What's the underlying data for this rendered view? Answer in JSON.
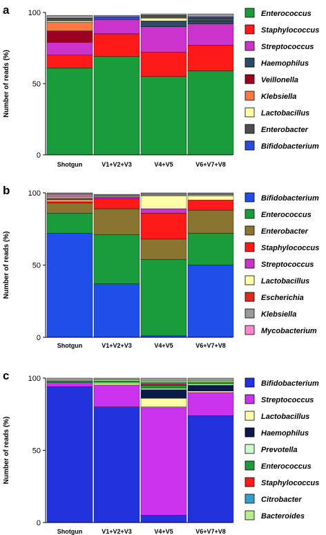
{
  "chart_data": [
    {
      "type": "bar",
      "stacked": true,
      "panel": "a",
      "ylabel": "Number of reads (%)",
      "ylim": [
        0,
        100
      ],
      "yticks": [
        0,
        50,
        100
      ],
      "categories": [
        "Shotgun",
        "V1+V2+V3",
        "V4+V5",
        "V6+V7+V8"
      ],
      "legend": [
        "Enterococcus",
        "Staphylococcus",
        "Streptococcus",
        "Haemophilus",
        "Veillonella",
        "Klebsiella",
        "Lactobacillus",
        "Enterobacter",
        "Bifidobacterium"
      ],
      "legend_position": "right",
      "series": [
        {
          "name": "Enterococcus",
          "color": "#1a9b3c",
          "values": [
            61,
            69,
            55,
            59
          ]
        },
        {
          "name": "Staphylococcus",
          "color": "#ff1a1a",
          "values": [
            9,
            16,
            17,
            18
          ]
        },
        {
          "name": "Streptococcus",
          "color": "#cc33cc",
          "values": [
            9,
            10,
            18,
            15
          ]
        },
        {
          "name": "Haemophilus",
          "color": "#2a4a66",
          "values": [
            0,
            0,
            4,
            2
          ]
        },
        {
          "name": "Veillonella",
          "color": "#990022",
          "values": [
            8,
            0,
            0,
            0
          ]
        },
        {
          "name": "Klebsiella",
          "color": "#ff7744",
          "values": [
            6,
            0,
            0,
            0
          ]
        },
        {
          "name": "Lactobacillus",
          "color": "#ffffaa",
          "values": [
            1,
            0,
            2,
            0
          ]
        },
        {
          "name": "Enterobacter",
          "color": "#4d4d4d",
          "values": [
            2,
            0,
            2,
            2
          ]
        },
        {
          "name": "Bifidobacterium",
          "color": "#2a4cdd",
          "values": [
            0,
            2,
            0,
            1
          ]
        },
        {
          "name": "",
          "color": "#999999",
          "values": [
            2,
            1,
            1,
            2
          ]
        }
      ]
    },
    {
      "type": "bar",
      "stacked": true,
      "panel": "b",
      "ylabel": "Number of reads (%)",
      "ylim": [
        0,
        100
      ],
      "yticks": [
        0,
        50,
        100
      ],
      "categories": [
        "Shotgun",
        "V1+V2+V3",
        "V4+V5",
        "V6+V7+V8"
      ],
      "legend": [
        "Bifidobacterium",
        "Enterococcus",
        "Enterobacter",
        "Staphylococcus",
        "Streptococcus",
        "Lactobacillus",
        "Escherichia",
        "Klebsiella",
        "Mycobacterium"
      ],
      "legend_position": "right",
      "series": [
        {
          "name": "Bifidobacterium",
          "color": "#1f4fe8",
          "values": [
            72,
            37,
            1,
            50
          ]
        },
        {
          "name": "Enterococcus",
          "color": "#1a9b3c",
          "values": [
            14,
            34,
            53,
            22
          ]
        },
        {
          "name": "Enterobacter",
          "color": "#8a7530",
          "values": [
            7,
            18,
            14,
            16
          ]
        },
        {
          "name": "Staphylococcus",
          "color": "#ff1a1a",
          "values": [
            1,
            7,
            18,
            7
          ]
        },
        {
          "name": "Streptococcus",
          "color": "#cc33cc",
          "values": [
            0,
            1,
            3,
            0
          ]
        },
        {
          "name": "Lactobacillus",
          "color": "#ffffaa",
          "values": [
            1,
            0,
            9,
            3
          ]
        },
        {
          "name": "Escherichia",
          "color": "#dd2a1a",
          "values": [
            1,
            0,
            0,
            0
          ]
        },
        {
          "name": "Klebsiella",
          "color": "#999999",
          "values": [
            2,
            1,
            0,
            1
          ]
        },
        {
          "name": "Mycobacterium",
          "color": "#ff88cc",
          "values": [
            1,
            0,
            0,
            0
          ]
        },
        {
          "name": "",
          "color": "#777777",
          "values": [
            1,
            1,
            2,
            1
          ]
        }
      ]
    },
    {
      "type": "bar",
      "stacked": true,
      "panel": "c",
      "ylabel": "Number of reads (%)",
      "ylim": [
        0,
        100
      ],
      "yticks": [
        0,
        50,
        100
      ],
      "categories": [
        "Shotgun",
        "V1+V2+V3",
        "V4+V5",
        "V6+V7+V8"
      ],
      "legend": [
        "Bifidobacterium",
        "Streptococcus",
        "Lactobacillus",
        "Haemophilus",
        "Prevotella",
        "Enterococcus",
        "Staphylococcus",
        "Citrobacter",
        "Bacteroides"
      ],
      "legend_position": "right",
      "series": [
        {
          "name": "Bifidobacterium",
          "color": "#2233dd",
          "values": [
            94,
            80,
            5,
            74
          ]
        },
        {
          "name": "Streptococcus",
          "color": "#cc33ee",
          "values": [
            3,
            15,
            75,
            16
          ]
        },
        {
          "name": "Lactobacillus",
          "color": "#ffffaa",
          "values": [
            0,
            1,
            6,
            1
          ]
        },
        {
          "name": "Haemophilus",
          "color": "#0b1a4a",
          "values": [
            0,
            0,
            6,
            4
          ]
        },
        {
          "name": "Prevotella",
          "color": "#ccffcc",
          "values": [
            0,
            1,
            1,
            1
          ]
        },
        {
          "name": "Enterococcus",
          "color": "#1a9b3c",
          "values": [
            1,
            1,
            2,
            1
          ]
        },
        {
          "name": "Staphylococcus",
          "color": "#ff1a1a",
          "values": [
            0,
            0,
            1,
            0
          ]
        },
        {
          "name": "Citrobacter",
          "color": "#33a0cc",
          "values": [
            0,
            0,
            1,
            0
          ]
        },
        {
          "name": "Bacteroides",
          "color": "#bbee88",
          "values": [
            0,
            1,
            1,
            1
          ]
        },
        {
          "name": "",
          "color": "#999999",
          "values": [
            2,
            1,
            2,
            2
          ]
        }
      ]
    }
  ]
}
